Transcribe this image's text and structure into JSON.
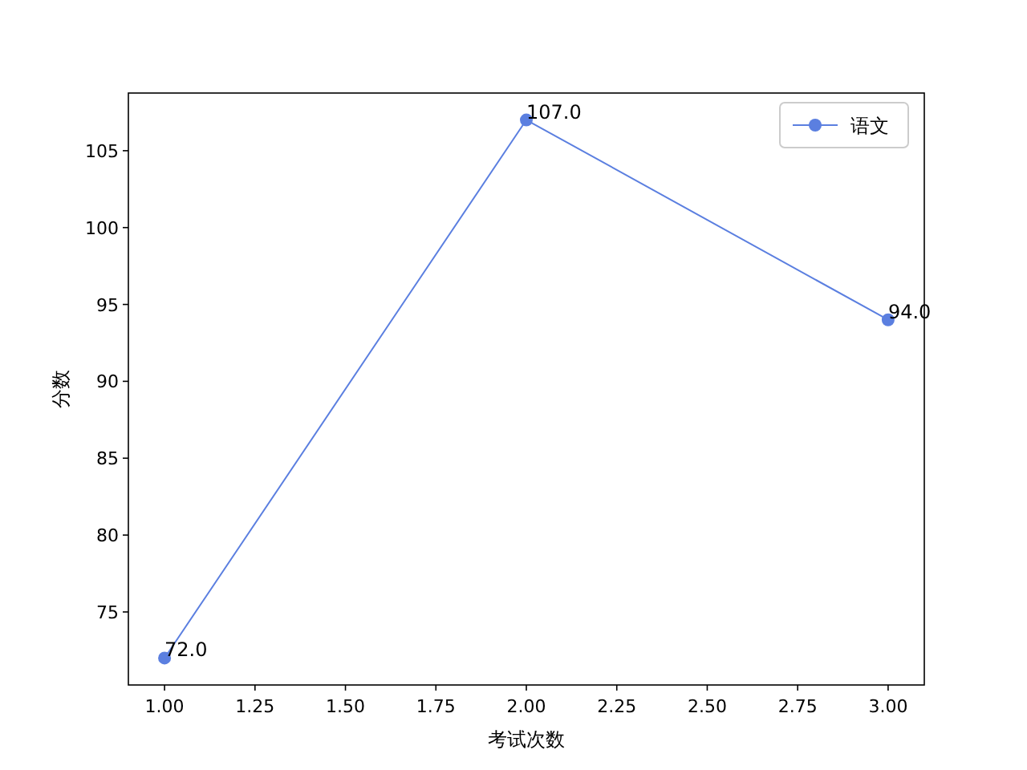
{
  "chart_data": {
    "type": "line",
    "xlabel": "考试次数",
    "ylabel": "分数",
    "x": [
      1,
      2,
      3
    ],
    "series": [
      {
        "name": "语文",
        "color": "#5b7fe0",
        "values": [
          72,
          107,
          94
        ],
        "value_labels": [
          "72.0",
          "107.0",
          "94.0"
        ]
      }
    ],
    "xlim": [
      0.9,
      3.1
    ],
    "ylim": [
      70.25,
      108.75
    ],
    "xticks": [
      {
        "value": 1,
        "label": "1.00"
      },
      {
        "value": 1.25,
        "label": "1.25"
      },
      {
        "value": 1.5,
        "label": "1.50"
      },
      {
        "value": 1.75,
        "label": "1.75"
      },
      {
        "value": 2,
        "label": "2.00"
      },
      {
        "value": 2.25,
        "label": "2.25"
      },
      {
        "value": 2.5,
        "label": "2.50"
      },
      {
        "value": 2.75,
        "label": "2.75"
      },
      {
        "value": 3,
        "label": "3.00"
      }
    ],
    "yticks": [
      75,
      80,
      85,
      90,
      95,
      100,
      105
    ],
    "legend": "top right",
    "marker": "circle"
  }
}
